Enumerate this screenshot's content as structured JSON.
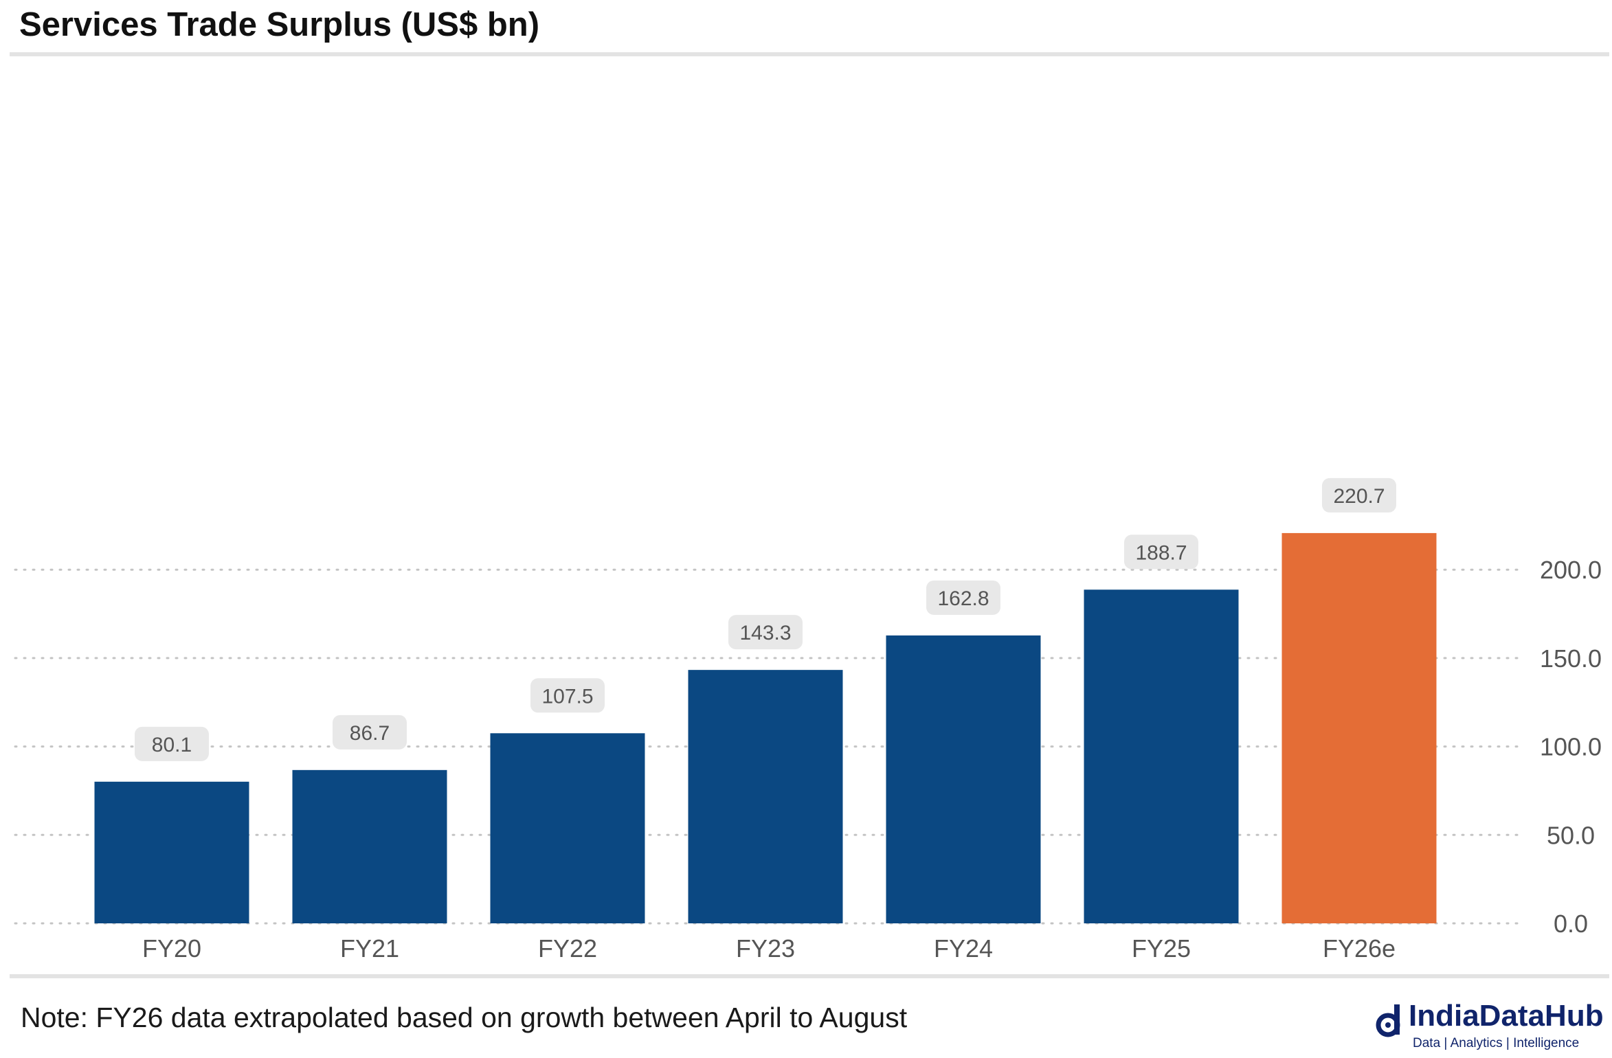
{
  "title": "Services Trade Surplus (US$ bn)",
  "note": "Note: FY26 data extrapolated based on growth between April to August",
  "logo": {
    "name": "IndiaDataHub",
    "tagline": "Data | Analytics | Intelligence",
    "icon": "indiadatahub-logo-icon"
  },
  "colors": {
    "bar": "#0b4882",
    "highlight": "#e46d36",
    "label_bg": "#e8e8e8",
    "grid": "#c4c4c4",
    "text": "#555555"
  },
  "chart_data": {
    "type": "bar",
    "title": "Services Trade Surplus (US$ bn)",
    "xlabel": "",
    "ylabel": "",
    "categories": [
      "FY20",
      "FY21",
      "FY22",
      "FY23",
      "FY24",
      "FY25",
      "FY26e"
    ],
    "values": [
      80.1,
      86.7,
      107.5,
      143.3,
      162.8,
      188.7,
      220.7
    ],
    "value_labels": [
      "80.1",
      "86.7",
      "107.5",
      "143.3",
      "162.8",
      "188.7",
      "220.7"
    ],
    "highlight_category": "FY26e",
    "y_axis_position": "right",
    "yticks": [
      0,
      50,
      100,
      150,
      200
    ],
    "ytick_labels": [
      "0.0",
      "50.0",
      "100.0",
      "150.0",
      "200.0"
    ],
    "ylim": [
      0,
      240
    ],
    "grid": "dotted-horizontal"
  }
}
